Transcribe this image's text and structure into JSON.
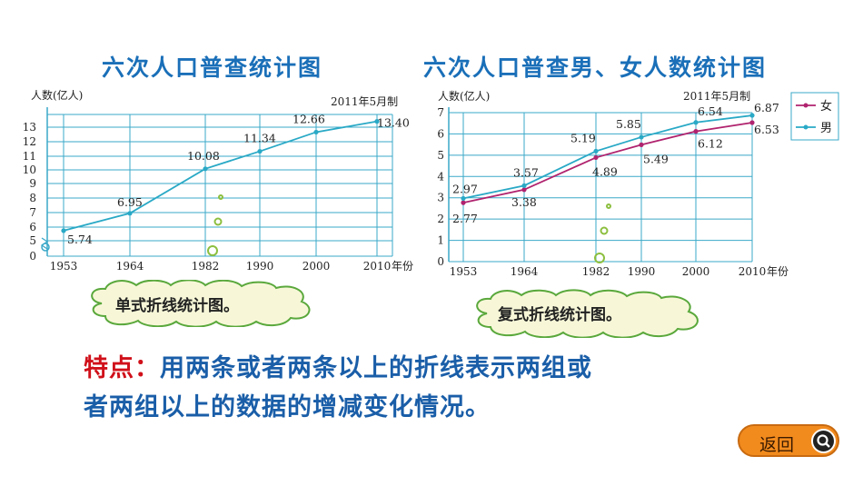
{
  "titles": {
    "single": "六次人口普查统计图",
    "double": "六次人口普查男、女人数统计图"
  },
  "clouds": {
    "single": "单式折线统计图。",
    "double": "复式折线统计图。"
  },
  "feature": {
    "lead": "特点：",
    "line1": "用两条或者两条以上的折线表示两组或",
    "line2": "者两组以上的数据的增减变化情况。"
  },
  "back_button": {
    "label": "返回",
    "icon": "magnifier-icon"
  },
  "colors": {
    "title": "#1a6fb8",
    "grid": "#3aa8c8",
    "female": "#b0236e",
    "male": "#29a9c6",
    "accent": "#d0101a",
    "button": "#f28b1e"
  },
  "chart_data": [
    {
      "type": "line",
      "ylabel": "人数(亿人)",
      "xlabel": "年份",
      "xunit_suffix": "年份",
      "note": "2011年5月制",
      "x": [
        1953,
        1964,
        1982,
        1990,
        2000,
        2010
      ],
      "yticks": [
        "0",
        "5",
        "6",
        "7",
        "8",
        "9",
        "10",
        "11",
        "12",
        "13"
      ],
      "series": [
        {
          "values": [
            5.74,
            6.95,
            10.08,
            11.34,
            12.66,
            13.4
          ],
          "labels": [
            "5.74",
            "6.95",
            "10.08",
            "11.34",
            "12.66",
            "13.40"
          ]
        }
      ],
      "ylim": [
        0,
        13.5
      ],
      "grid": true
    },
    {
      "type": "line",
      "ylabel": "人数(亿人)",
      "xlabel": "年份",
      "xunit_suffix": "年份",
      "note": "2011年5月制",
      "x": [
        1953,
        1964,
        1982,
        1990,
        2000,
        2010
      ],
      "yticks": [
        "0",
        "1",
        "2",
        "3",
        "4",
        "5",
        "6",
        "7"
      ],
      "series": [
        {
          "name": "女",
          "values": [
            2.77,
            3.38,
            4.89,
            5.49,
            6.12,
            6.53
          ],
          "labels": [
            "2.77",
            "3.38",
            "4.89",
            "5.49",
            "6.12",
            "6.53"
          ]
        },
        {
          "name": "男",
          "values": [
            2.97,
            3.57,
            5.19,
            5.85,
            6.54,
            6.87
          ],
          "labels": [
            "2.97",
            "3.57",
            "5.19",
            "5.85",
            "6.54",
            "6.87"
          ]
        }
      ],
      "ylim": [
        0,
        7
      ],
      "grid": true,
      "legend": "top-right"
    }
  ]
}
